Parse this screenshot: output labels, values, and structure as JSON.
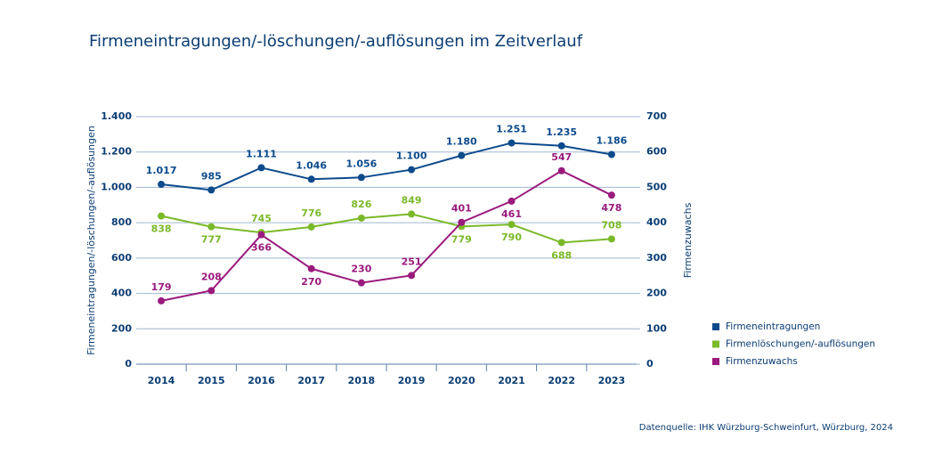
{
  "chart_data": {
    "type": "line",
    "title": "Firmeneintragungen/-löschungen/-auflösungen im Zeitverlauf",
    "y_label": "Firmeneintragungen/-löschungen/-auflösungen",
    "y2_label": "Firmenzuwachs",
    "source": "Datenquelle: IHK Würzburg-Schweinfurt, Würzburg, 2024",
    "categories": [
      "2014",
      "2015",
      "2016",
      "2017",
      "2018",
      "2019",
      "2020",
      "2021",
      "2022",
      "2023"
    ],
    "ylim": [
      0,
      1400
    ],
    "yticks": [
      0,
      200,
      400,
      600,
      800,
      {
        "value": 1000,
        "label": "1.000"
      },
      {
        "value": 1200,
        "label": "1.200"
      },
      {
        "value": 1400,
        "label": "1.400"
      }
    ],
    "y2lim": [
      0,
      700
    ],
    "y2ticks": [
      0,
      100,
      200,
      300,
      400,
      500,
      600,
      700
    ],
    "grid": true,
    "legend": "right",
    "series": [
      {
        "name": "Firmeneintragungen",
        "color": "#0b4a8b",
        "values": [
          1017,
          985,
          1111,
          1046,
          1056,
          1100,
          1180,
          1251,
          1235,
          1186
        ],
        "value_labels": [
          "1.017",
          "985",
          "1.111",
          "1.046",
          "1.056",
          "1.100",
          "1.180",
          "1.251",
          "1.235",
          "1.186"
        ]
      },
      {
        "name": "Firmenlöschungen/-auflösungen",
        "color": "#7ab929",
        "values": [
          838,
          777,
          745,
          776,
          826,
          849,
          779,
          790,
          688,
          708
        ]
      },
      {
        "name": "Firmenzuwachs",
        "color": "#9a1a7d",
        "axis": "y2",
        "values": [
          179,
          208,
          366,
          270,
          230,
          251,
          401,
          461,
          547,
          478
        ]
      }
    ]
  }
}
